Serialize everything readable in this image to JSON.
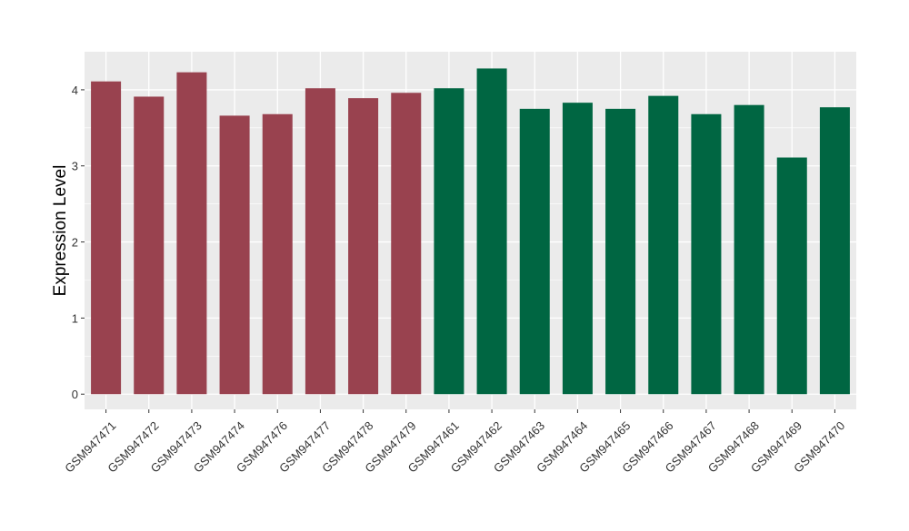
{
  "chart_data": {
    "type": "bar",
    "title": "",
    "xlabel": "",
    "ylabel": "Expression Level",
    "ylim": [
      -0.2,
      4.5
    ],
    "yticks": [
      0,
      1,
      2,
      3,
      4
    ],
    "grid": true,
    "legend": "none",
    "categories": [
      "GSM947471",
      "GSM947472",
      "GSM947473",
      "GSM947474",
      "GSM947476",
      "GSM947477",
      "GSM947478",
      "GSM947479",
      "GSM947461",
      "GSM947462",
      "GSM947463",
      "GSM947464",
      "GSM947465",
      "GSM947466",
      "GSM947467",
      "GSM947468",
      "GSM947469",
      "GSM947470"
    ],
    "values": [
      4.11,
      3.91,
      4.23,
      3.66,
      3.68,
      4.02,
      3.89,
      3.96,
      4.02,
      4.28,
      3.75,
      3.83,
      3.75,
      3.92,
      3.68,
      3.8,
      3.11,
      3.77
    ],
    "bar_colors": [
      "#99424f",
      "#99424f",
      "#99424f",
      "#99424f",
      "#99424f",
      "#99424f",
      "#99424f",
      "#99424f",
      "#006642",
      "#006642",
      "#006642",
      "#006642",
      "#006642",
      "#006642",
      "#006642",
      "#006642",
      "#006642",
      "#006642"
    ],
    "panel_background": "#ebebeb",
    "grid_color": "#ffffff"
  }
}
